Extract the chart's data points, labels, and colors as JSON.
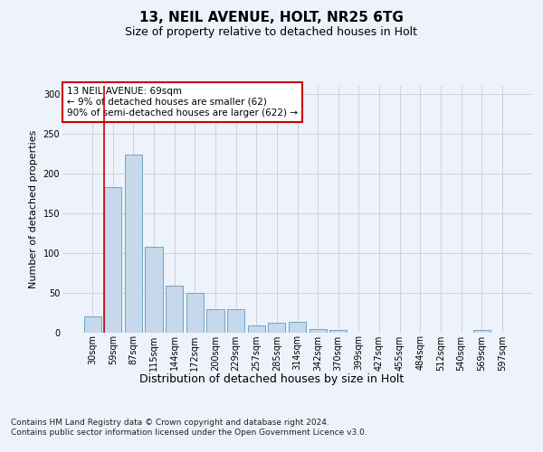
{
  "title1": "13, NEIL AVENUE, HOLT, NR25 6TG",
  "title2": "Size of property relative to detached houses in Holt",
  "xlabel": "Distribution of detached houses by size in Holt",
  "ylabel": "Number of detached properties",
  "bar_labels": [
    "30sqm",
    "59sqm",
    "87sqm",
    "115sqm",
    "144sqm",
    "172sqm",
    "200sqm",
    "229sqm",
    "257sqm",
    "285sqm",
    "314sqm",
    "342sqm",
    "370sqm",
    "399sqm",
    "427sqm",
    "455sqm",
    "484sqm",
    "512sqm",
    "540sqm",
    "569sqm",
    "597sqm"
  ],
  "bar_values": [
    20,
    183,
    224,
    107,
    59,
    50,
    29,
    29,
    9,
    12,
    13,
    4,
    3,
    0,
    0,
    0,
    0,
    0,
    0,
    3,
    0
  ],
  "bar_color": "#c5d8ec",
  "bar_edge_color": "#6699bb",
  "background_color": "#eef2fa",
  "grid_color": "#ccccdd",
  "vline_x_idx": 1,
  "vline_color": "#cc0000",
  "annotation_text": "13 NEIL AVENUE: 69sqm\n← 9% of detached houses are smaller (62)\n90% of semi-detached houses are larger (622) →",
  "annotation_box_color": "#ffffff",
  "annotation_box_edge": "#cc0000",
  "ylim": [
    0,
    310
  ],
  "yticks": [
    0,
    50,
    100,
    150,
    200,
    250,
    300
  ],
  "footer": "Contains HM Land Registry data © Crown copyright and database right 2024.\nContains public sector information licensed under the Open Government Licence v3.0.",
  "title1_fontsize": 11,
  "title2_fontsize": 9,
  "xlabel_fontsize": 9,
  "ylabel_fontsize": 8,
  "tick_fontsize": 7,
  "annotation_fontsize": 7.5,
  "footer_fontsize": 6.5
}
